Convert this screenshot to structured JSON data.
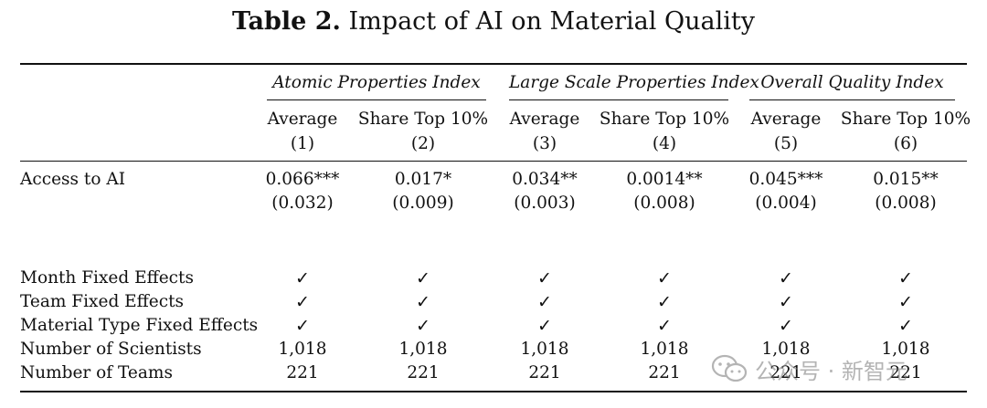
{
  "table": {
    "title_label": "Table 2.",
    "title_text": "Impact of AI on Material Quality",
    "groups": [
      {
        "label": "Atomic Properties Index"
      },
      {
        "label": "Large Scale Properties Index"
      },
      {
        "label": "Overall Quality Index"
      }
    ],
    "columns": [
      {
        "header": "Average",
        "num": "(1)"
      },
      {
        "header": "Share Top 10%",
        "num": "(2)"
      },
      {
        "header": "Average",
        "num": "(3)"
      },
      {
        "header": "Share Top 10%",
        "num": "(4)"
      },
      {
        "header": "Average",
        "num": "(5)"
      },
      {
        "header": "Share Top 10%",
        "num": "(6)"
      }
    ],
    "access_row": {
      "label": "Access to AI",
      "coefs": [
        "0.066***",
        "0.017*",
        "0.034**",
        "0.0014**",
        "0.045***",
        "0.015**"
      ],
      "ses": [
        "(0.032)",
        "(0.009)",
        "(0.003)",
        "(0.008)",
        "(0.004)",
        "(0.008)"
      ]
    },
    "control_rows": [
      {
        "label": "Month Fixed Effects",
        "values": [
          "✓",
          "✓",
          "✓",
          "✓",
          "✓",
          "✓"
        ]
      },
      {
        "label": "Team Fixed Effects",
        "values": [
          "✓",
          "✓",
          "✓",
          "✓",
          "✓",
          "✓"
        ]
      },
      {
        "label": "Material Type Fixed Effects",
        "values": [
          "✓",
          "✓",
          "✓",
          "✓",
          "✓",
          "✓"
        ]
      },
      {
        "label": "Number of Scientists",
        "values": [
          "1,018",
          "1,018",
          "1,018",
          "1,018",
          "1,018",
          "1,018"
        ]
      },
      {
        "label": "Number of Teams",
        "values": [
          "221",
          "221",
          "221",
          "221",
          "221",
          "221"
        ]
      }
    ]
  },
  "watermark": {
    "text": "公众号 · 新智元",
    "icon": "wechat-icon"
  }
}
